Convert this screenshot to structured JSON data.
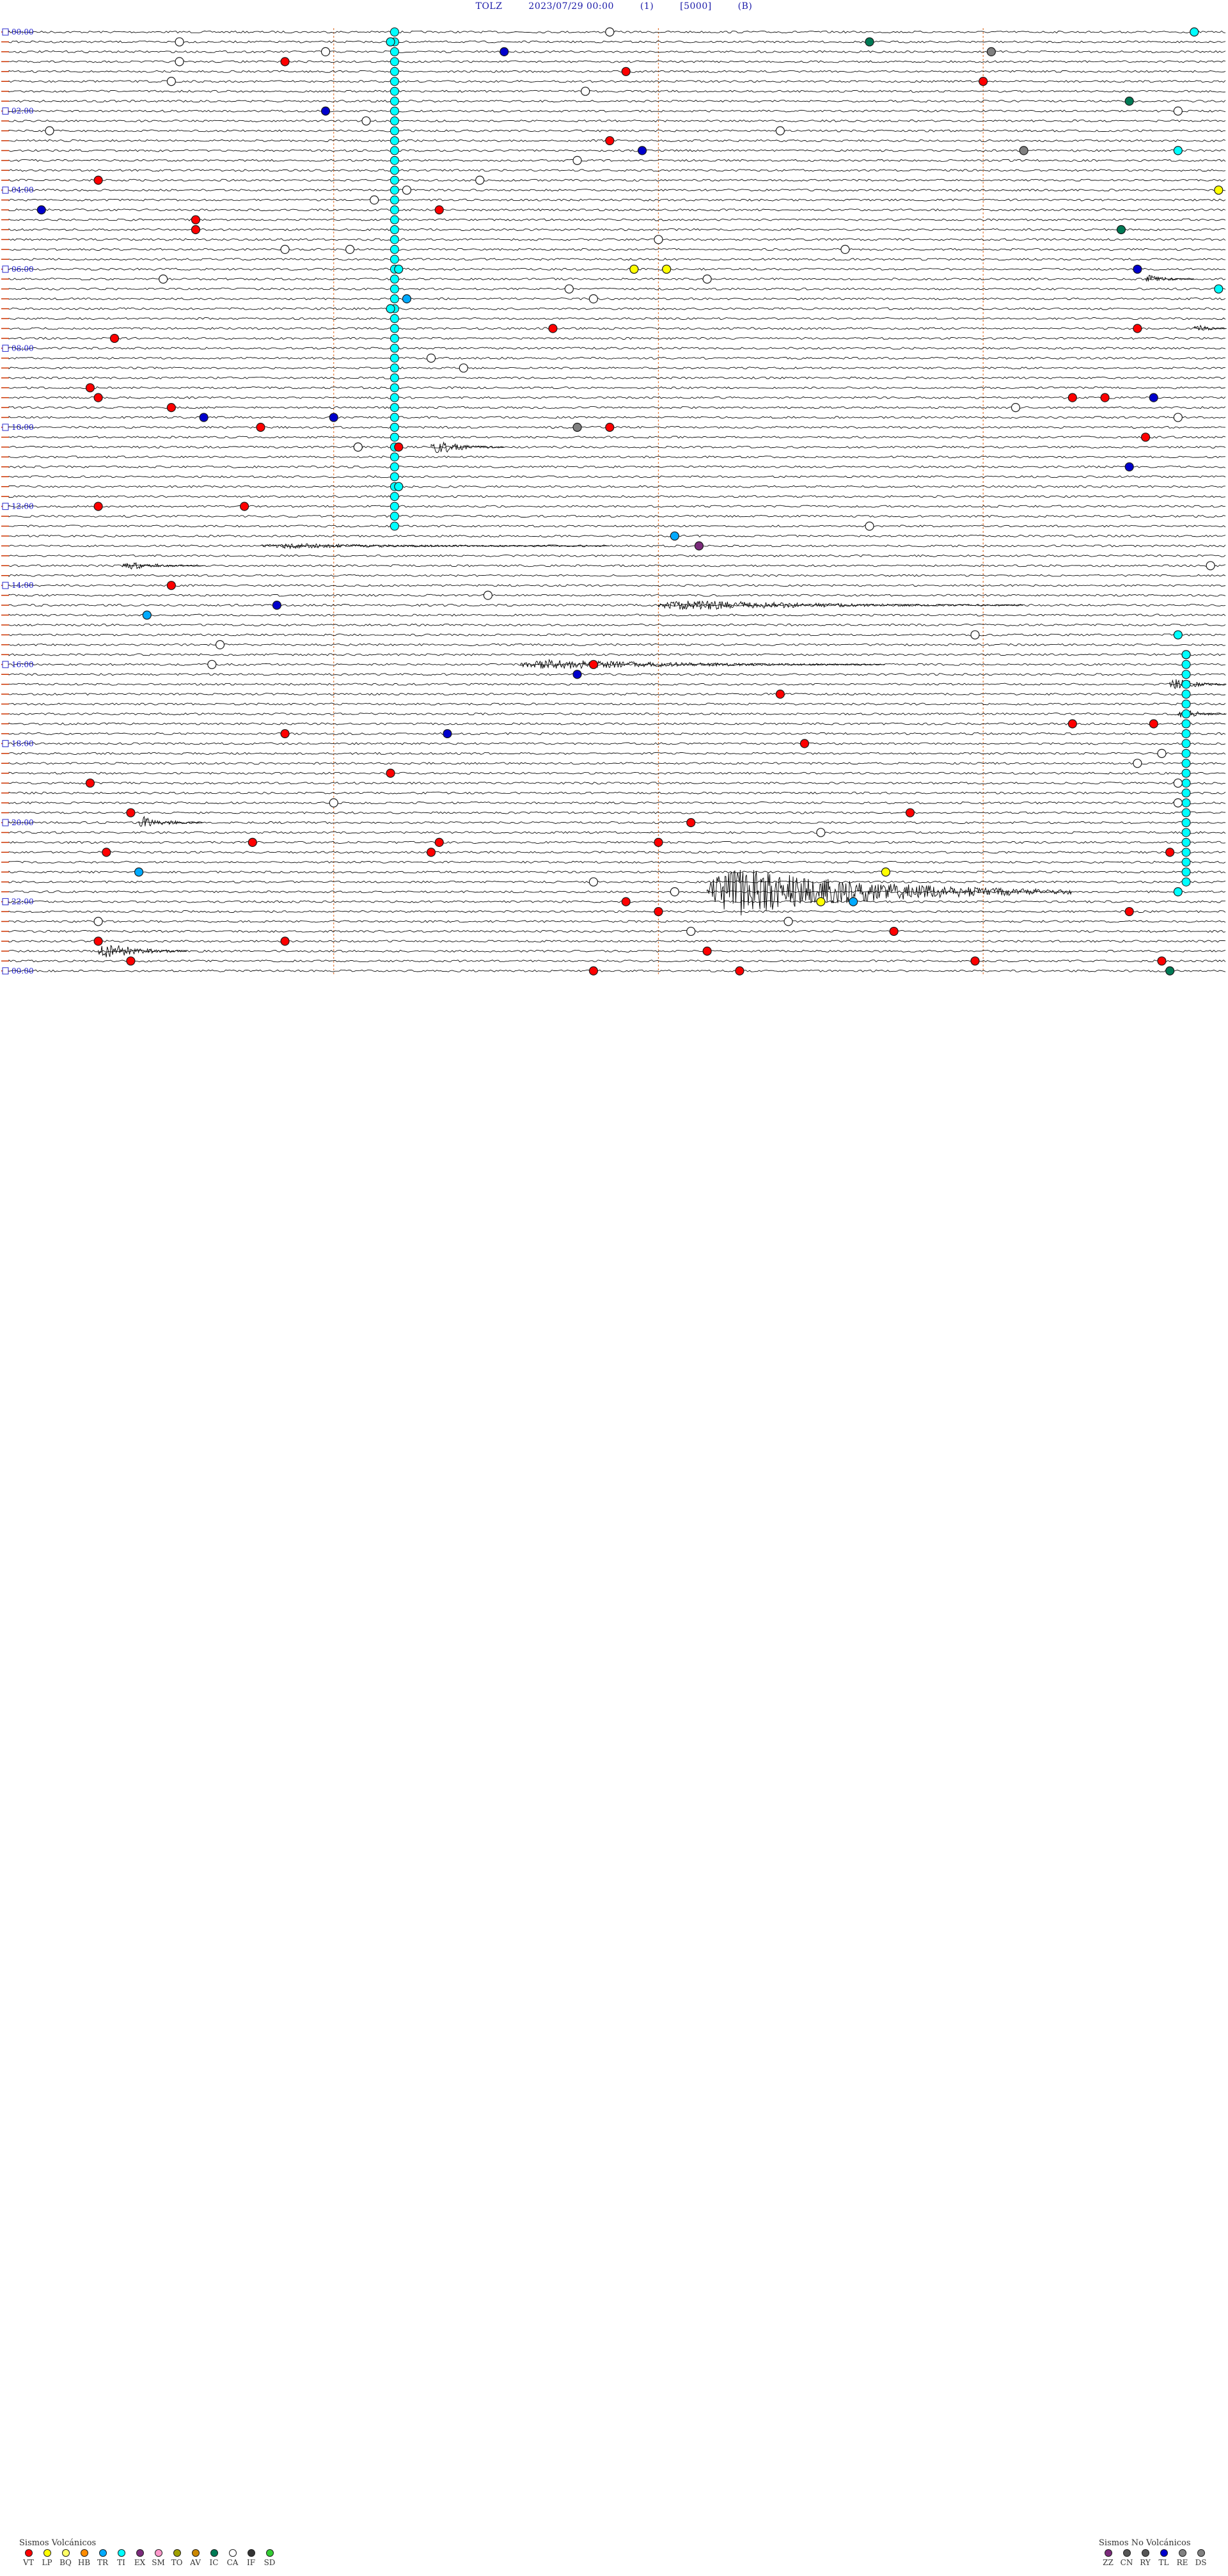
{
  "header": {
    "station": "TOLZ",
    "datetime": "2023/07/29 00:00",
    "channel": "(1)",
    "scale": "[5000]",
    "component": "(B)"
  },
  "chart_data": {
    "type": "helicorder",
    "lines": 96,
    "minutes_per_line": 15,
    "time_labels": [
      "00:00",
      "02:00",
      "04:00",
      "06:00",
      "08:00",
      "10:00",
      "12:00",
      "14:00",
      "16:00",
      "18:00",
      "20:00",
      "22:00",
      "00:00"
    ],
    "colors": {
      "VT": "#ff0000",
      "LP": "#ffff00",
      "BQ": "#ffff66",
      "HB": "#ff8c00",
      "TR": "#00aaff",
      "TI": "#00ffff",
      "EX": "#7b2a7b",
      "SM": "#ff99cc",
      "TO": "#a0a000",
      "AV": "#cc8800",
      "IC": "#007a55",
      "CA": "#ffffff",
      "IF": "#333333",
      "SD": "#33cc33",
      "ZZ": "#7b2a7b",
      "CN": "#555555",
      "RY": "#555555",
      "TL": "#0000cc",
      "RE": "#808080",
      "DS": "#808080"
    },
    "events": [
      {
        "line": 0,
        "minute": 7.4,
        "type": "CA"
      },
      {
        "line": 0,
        "minute": 14.6,
        "type": "TI"
      },
      {
        "line": 1,
        "minute": 2.1,
        "type": "CA"
      },
      {
        "line": 1,
        "minute": 4.7,
        "type": "TI"
      },
      {
        "line": 1,
        "minute": 10.6,
        "type": "IC"
      },
      {
        "line": 2,
        "minute": 3.9,
        "type": "CA"
      },
      {
        "line": 2,
        "minute": 6.1,
        "type": "TL"
      },
      {
        "line": 2,
        "minute": 12.1,
        "type": "RE"
      },
      {
        "line": 3,
        "minute": 3.4,
        "type": "VT"
      },
      {
        "line": 3,
        "minute": 2.1,
        "type": "CA"
      },
      {
        "line": 4,
        "minute": 7.6,
        "type": "VT"
      },
      {
        "line": 4,
        "minute": 17.3,
        "type": "CA"
      },
      {
        "line": 4,
        "minute": 18.5,
        "type": "CA"
      },
      {
        "line": 5,
        "minute": 12.0,
        "type": "VT"
      },
      {
        "line": 5,
        "minute": 2.0,
        "type": "CA"
      },
      {
        "line": 6,
        "minute": 7.1,
        "type": "CA"
      },
      {
        "line": 6,
        "minute": 21.2,
        "type": "VT"
      },
      {
        "line": 7,
        "minute": 13.8,
        "type": "IC"
      },
      {
        "line": 7,
        "minute": 17.9,
        "type": "CA"
      },
      {
        "line": 8,
        "minute": 3.9,
        "type": "TL"
      },
      {
        "line": 8,
        "minute": 14.4,
        "type": "CA"
      },
      {
        "line": 9,
        "minute": 4.4,
        "type": "CA"
      },
      {
        "line": 9,
        "minute": 16.5,
        "type": "CA"
      },
      {
        "line": 10,
        "minute": 0.5,
        "type": "CA"
      },
      {
        "line": 10,
        "minute": 9.5,
        "type": "CA"
      },
      {
        "line": 11,
        "minute": 7.4,
        "type": "VT"
      },
      {
        "line": 11,
        "minute": 18.7,
        "type": "VT"
      },
      {
        "line": 12,
        "minute": 7.8,
        "type": "TL"
      },
      {
        "line": 12,
        "minute": 12.5,
        "type": "RE"
      },
      {
        "line": 12,
        "minute": 14.4,
        "type": "TI"
      },
      {
        "line": 13,
        "minute": 7.0,
        "type": "CA"
      },
      {
        "line": 14,
        "minute": 18.1,
        "type": "CA"
      },
      {
        "line": 15,
        "minute": 1.1,
        "type": "VT"
      },
      {
        "line": 15,
        "minute": 5.8,
        "type": "CA"
      },
      {
        "line": 16,
        "minute": 4.9,
        "type": "CA"
      },
      {
        "line": 16,
        "minute": 14.9,
        "type": "LP"
      },
      {
        "line": 16,
        "minute": 17.3,
        "type": "LP"
      },
      {
        "line": 16,
        "minute": 18.4,
        "type": "LP"
      },
      {
        "line": 16,
        "minute": 20.2,
        "type": "LP"
      },
      {
        "line": 17,
        "minute": 4.5,
        "type": "CA"
      },
      {
        "line": 17,
        "minute": 19.6,
        "type": "IC"
      },
      {
        "line": 18,
        "minute": 0.4,
        "type": "TL"
      },
      {
        "line": 18,
        "minute": 5.3,
        "type": "VT"
      },
      {
        "line": 18,
        "minute": 22.9,
        "type": "CA"
      },
      {
        "line": 19,
        "minute": 2.3,
        "type": "VT"
      },
      {
        "line": 19,
        "minute": 19.2,
        "type": "CA"
      },
      {
        "line": 20,
        "minute": 2.3,
        "type": "VT"
      },
      {
        "line": 20,
        "minute": 13.7,
        "type": "IC"
      },
      {
        "line": 21,
        "minute": 8.0,
        "type": "CA"
      },
      {
        "line": 21,
        "minute": 20.3,
        "type": "CA"
      },
      {
        "line": 22,
        "minute": 3.4,
        "type": "CA"
      },
      {
        "line": 22,
        "minute": 4.2,
        "type": "CA"
      },
      {
        "line": 22,
        "minute": 10.3,
        "type": "CA"
      },
      {
        "line": 22,
        "minute": 20.4,
        "type": "VT"
      },
      {
        "line": 23,
        "minute": 21.3,
        "type": "CA"
      },
      {
        "line": 23,
        "minute": 21.9,
        "type": "CA"
      },
      {
        "line": 24,
        "minute": 4.8,
        "type": "TI"
      },
      {
        "line": 24,
        "minute": 7.7,
        "type": "LP"
      },
      {
        "line": 24,
        "minute": 8.1,
        "type": "LP"
      },
      {
        "line": 24,
        "minute": 13.9,
        "type": "TL"
      },
      {
        "line": 24,
        "minute": 17.8,
        "type": "VT"
      },
      {
        "line": 24,
        "minute": 21.4,
        "type": "CA"
      },
      {
        "line": 25,
        "minute": 1.9,
        "type": "CA"
      },
      {
        "line": 25,
        "minute": 8.6,
        "type": "CA"
      },
      {
        "line": 25,
        "minute": 20.5,
        "type": "CA"
      },
      {
        "line": 25,
        "minute": 22.0,
        "type": "CA"
      },
      {
        "line": 26,
        "minute": 6.9,
        "type": "CA"
      },
      {
        "line": 26,
        "minute": 14.9,
        "type": "TI"
      },
      {
        "line": 27,
        "minute": 4.9,
        "type": "TR"
      },
      {
        "line": 27,
        "minute": 7.2,
        "type": "CA"
      },
      {
        "line": 27,
        "minute": 17.3,
        "type": "TR"
      },
      {
        "line": 28,
        "minute": 4.7,
        "type": "TI"
      },
      {
        "line": 28,
        "minute": 16.5,
        "type": "TR"
      },
      {
        "line": 29,
        "minute": 23.1,
        "type": "CA"
      },
      {
        "line": 30,
        "minute": 6.7,
        "type": "VT"
      },
      {
        "line": 30,
        "minute": 13.9,
        "type": "VT"
      },
      {
        "line": 30,
        "minute": 17.1,
        "type": "IC"
      },
      {
        "line": 31,
        "minute": 1.3,
        "type": "VT"
      },
      {
        "line": 33,
        "minute": 5.2,
        "type": "CA"
      },
      {
        "line": 34,
        "minute": 5.6,
        "type": "CA"
      },
      {
        "line": 35,
        "minute": 20.9,
        "type": "VT"
      },
      {
        "line": 36,
        "minute": 1.0,
        "type": "VT"
      },
      {
        "line": 36,
        "minute": 21.1,
        "type": "CA"
      },
      {
        "line": 37,
        "minute": 1.1,
        "type": "VT"
      },
      {
        "line": 37,
        "minute": 13.1,
        "type": "VT"
      },
      {
        "line": 37,
        "minute": 13.5,
        "type": "VT"
      },
      {
        "line": 37,
        "minute": 14.1,
        "type": "TL"
      },
      {
        "line": 37,
        "minute": 16.4,
        "type": "VT"
      },
      {
        "line": 38,
        "minute": 2.0,
        "type": "VT"
      },
      {
        "line": 38,
        "minute": 12.4,
        "type": "CA"
      },
      {
        "line": 39,
        "minute": 2.4,
        "type": "TL"
      },
      {
        "line": 39,
        "minute": 4.0,
        "type": "TL"
      },
      {
        "line": 39,
        "minute": 14.4,
        "type": "CA"
      },
      {
        "line": 40,
        "minute": 7.0,
        "type": "RE"
      },
      {
        "line": 40,
        "minute": 3.1,
        "type": "VT"
      },
      {
        "line": 40,
        "minute": 7.4,
        "type": "VT"
      },
      {
        "line": 41,
        "minute": 14.0,
        "type": "VT"
      },
      {
        "line": 41,
        "minute": 20.1,
        "type": "CA"
      },
      {
        "line": 42,
        "minute": 4.3,
        "type": "CA"
      },
      {
        "line": 42,
        "minute": 4.8,
        "type": "VT"
      },
      {
        "line": 42,
        "minute": 4.3,
        "type": "CA"
      },
      {
        "line": 43,
        "minute": 17.3,
        "type": "CA"
      },
      {
        "line": 43,
        "minute": 19.6,
        "type": "CA"
      },
      {
        "line": 44,
        "minute": 13.8,
        "type": "TL"
      },
      {
        "line": 45,
        "minute": 15.5,
        "type": "VT"
      },
      {
        "line": 45,
        "minute": 21.8,
        "type": "VT"
      },
      {
        "line": 46,
        "minute": 4.8,
        "type": "TI"
      },
      {
        "line": 46,
        "minute": 16.9,
        "type": "VT"
      },
      {
        "line": 46,
        "minute": 18.4,
        "type": "CA"
      },
      {
        "line": 46,
        "minute": 20.0,
        "type": "LP"
      },
      {
        "line": 48,
        "minute": 1.1,
        "type": "VT"
      },
      {
        "line": 48,
        "minute": 2.9,
        "type": "VT"
      },
      {
        "line": 50,
        "minute": 10.6,
        "type": "CA"
      },
      {
        "line": 50,
        "minute": 19.9,
        "type": "VT"
      },
      {
        "line": 51,
        "minute": 8.2,
        "type": "TR"
      },
      {
        "line": 52,
        "minute": 8.5,
        "type": "EX"
      },
      {
        "line": 54,
        "minute": 14.8,
        "type": "CA"
      },
      {
        "line": 56,
        "minute": 2.0,
        "type": "VT"
      },
      {
        "line": 56,
        "minute": 19.8,
        "type": "CA"
      },
      {
        "line": 57,
        "minute": 5.9,
        "type": "CA"
      },
      {
        "line": 57,
        "minute": 20.4,
        "type": "CA"
      },
      {
        "line": 58,
        "minute": 3.3,
        "type": "TL"
      },
      {
        "line": 58,
        "minute": 20.0,
        "type": "VT"
      },
      {
        "line": 59,
        "minute": 1.7,
        "type": "TR"
      },
      {
        "line": 60,
        "minute": 19.4,
        "type": "VT"
      },
      {
        "line": 61,
        "minute": 11.9,
        "type": "CA"
      },
      {
        "line": 61,
        "minute": 14.4,
        "type": "TI"
      },
      {
        "line": 61,
        "minute": 16.8,
        "type": "VT"
      },
      {
        "line": 62,
        "minute": 2.6,
        "type": "CA"
      },
      {
        "line": 62,
        "minute": 21.6,
        "type": "RE"
      },
      {
        "line": 63,
        "minute": 14.5,
        "type": "TI"
      },
      {
        "line": 63,
        "minute": 16.8,
        "type": "VT"
      },
      {
        "line": 64,
        "minute": 2.5,
        "type": "CA"
      },
      {
        "line": 64,
        "minute": 7.2,
        "type": "VT"
      },
      {
        "line": 65,
        "minute": 7.0,
        "type": "TL"
      },
      {
        "line": 67,
        "minute": 9.5,
        "type": "VT"
      },
      {
        "line": 69,
        "minute": 18.3,
        "type": "VT"
      },
      {
        "line": 70,
        "minute": 13.1,
        "type": "VT"
      },
      {
        "line": 70,
        "minute": 14.1,
        "type": "VT"
      },
      {
        "line": 71,
        "minute": 3.4,
        "type": "VT"
      },
      {
        "line": 71,
        "minute": 5.4,
        "type": "TL"
      },
      {
        "line": 72,
        "minute": 9.8,
        "type": "VT"
      },
      {
        "line": 73,
        "minute": 14.2,
        "type": "CA"
      },
      {
        "line": 73,
        "minute": 20.0,
        "type": "CA"
      },
      {
        "line": 73,
        "minute": 21.0,
        "type": "VT"
      },
      {
        "line": 74,
        "minute": 13.9,
        "type": "CA"
      },
      {
        "line": 75,
        "minute": 4.7,
        "type": "VT"
      },
      {
        "line": 75,
        "minute": 19.1,
        "type": "VT"
      },
      {
        "line": 76,
        "minute": 1.0,
        "type": "VT"
      },
      {
        "line": 76,
        "minute": 14.4,
        "type": "CA"
      },
      {
        "line": 76,
        "minute": 18.2,
        "type": "CA"
      },
      {
        "line": 77,
        "minute": 21.0,
        "type": "CA"
      },
      {
        "line": 77,
        "minute": 18.8,
        "type": "TR"
      },
      {
        "line": 78,
        "minute": 4.0,
        "type": "CA"
      },
      {
        "line": 78,
        "minute": 14.4,
        "type": "CA"
      },
      {
        "line": 78,
        "minute": 18.9,
        "type": "LP"
      },
      {
        "line": 79,
        "minute": 1.5,
        "type": "VT"
      },
      {
        "line": 79,
        "minute": 11.1,
        "type": "VT"
      },
      {
        "line": 80,
        "minute": 8.4,
        "type": "VT"
      },
      {
        "line": 81,
        "minute": 10.0,
        "type": "CA"
      },
      {
        "line": 81,
        "minute": 18.8,
        "type": "CA"
      },
      {
        "line": 82,
        "minute": 3.0,
        "type": "VT"
      },
      {
        "line": 82,
        "minute": 5.3,
        "type": "VT"
      },
      {
        "line": 82,
        "minute": 8.0,
        "type": "VT"
      },
      {
        "line": 82,
        "minute": 16.1,
        "type": "VT"
      },
      {
        "line": 82,
        "minute": 20.9,
        "type": "VT"
      },
      {
        "line": 82,
        "minute": 22.8,
        "type": "VT"
      },
      {
        "line": 83,
        "minute": 1.2,
        "type": "VT"
      },
      {
        "line": 83,
        "minute": 5.2,
        "type": "VT"
      },
      {
        "line": 83,
        "minute": 14.3,
        "type": "VT"
      },
      {
        "line": 83,
        "minute": 17.9,
        "type": "VT"
      },
      {
        "line": 84,
        "minute": 17.0,
        "type": "TL"
      },
      {
        "line": 84,
        "minute": 21.0,
        "type": "LP"
      },
      {
        "line": 85,
        "minute": 1.6,
        "type": "TR"
      },
      {
        "line": 85,
        "minute": 10.8,
        "type": "LP"
      },
      {
        "line": 86,
        "minute": 7.2,
        "type": "CA"
      },
      {
        "line": 87,
        "minute": 8.2,
        "type": "CA"
      },
      {
        "line": 87,
        "minute": 14.4,
        "type": "TI"
      },
      {
        "line": 88,
        "minute": 7.6,
        "type": "VT"
      },
      {
        "line": 88,
        "minute": 10.0,
        "type": "LP"
      },
      {
        "line": 88,
        "minute": 10.4,
        "type": "TR"
      },
      {
        "line": 89,
        "minute": 8.0,
        "type": "VT"
      },
      {
        "line": 89,
        "minute": 13.8,
        "type": "VT"
      },
      {
        "line": 90,
        "minute": 1.1,
        "type": "CA"
      },
      {
        "line": 90,
        "minute": 9.6,
        "type": "CA"
      },
      {
        "line": 91,
        "minute": 8.4,
        "type": "CA"
      },
      {
        "line": 91,
        "minute": 10.9,
        "type": "VT"
      },
      {
        "line": 92,
        "minute": 1.1,
        "type": "VT"
      },
      {
        "line": 92,
        "minute": 3.4,
        "type": "VT"
      },
      {
        "line": 93,
        "minute": 8.6,
        "type": "VT"
      },
      {
        "line": 93,
        "minute": 15.6,
        "type": "VT"
      },
      {
        "line": 94,
        "minute": 1.5,
        "type": "VT"
      },
      {
        "line": 94,
        "minute": 11.9,
        "type": "VT"
      },
      {
        "line": 94,
        "minute": 14.2,
        "type": "VT"
      },
      {
        "line": 95,
        "minute": 7.2,
        "type": "VT"
      },
      {
        "line": 95,
        "minute": 9.0,
        "type": "VT"
      },
      {
        "line": 95,
        "minute": 14.3,
        "type": "IC"
      }
    ],
    "bursts": [
      {
        "line": 4,
        "minute": 22.5,
        "width": 1.2,
        "amp": 14
      },
      {
        "line": 15,
        "minute": 21.4,
        "width": 0.8,
        "amp": 10
      },
      {
        "line": 25,
        "minute": 14.0,
        "width": 0.6,
        "amp": 8
      },
      {
        "line": 30,
        "minute": 14.6,
        "width": 1.0,
        "amp": 8
      },
      {
        "line": 42,
        "minute": 5.2,
        "width": 0.9,
        "amp": 14
      },
      {
        "line": 46,
        "minute": 18.2,
        "width": 0.9,
        "amp": 10
      },
      {
        "line": 47,
        "minute": 17.4,
        "width": 1.0,
        "amp": 12
      },
      {
        "line": 52,
        "minute": 3.1,
        "width": 4.3,
        "amp": 5
      },
      {
        "line": 54,
        "minute": 1.4,
        "width": 1.0,
        "amp": 8
      },
      {
        "line": 58,
        "minute": 8.0,
        "width": 4.5,
        "amp": 10
      },
      {
        "line": 64,
        "minute": 6.3,
        "width": 4.5,
        "amp": 10
      },
      {
        "line": 66,
        "minute": 14.3,
        "width": 3.0,
        "amp": 12
      },
      {
        "line": 69,
        "minute": 14.4,
        "width": 1.4,
        "amp": 10
      },
      {
        "line": 80,
        "minute": 1.6,
        "width": 0.8,
        "amp": 12
      },
      {
        "line": 84,
        "minute": 20.8,
        "width": 3.8,
        "amp": 55
      },
      {
        "line": 87,
        "minute": 8.6,
        "width": 4.5,
        "amp": 48
      },
      {
        "line": 93,
        "minute": 1.1,
        "width": 1.1,
        "amp": 16
      }
    ],
    "tremor_columns": [
      {
        "minute": 4.75,
        "from_line": 0,
        "to_line": 51
      },
      {
        "minute": 19.4,
        "from_line": 51,
        "to_line": 64
      },
      {
        "minute": 14.5,
        "from_line": 64,
        "to_line": 87
      },
      {
        "minute": 19.4,
        "from_line": 87,
        "to_line": 96
      }
    ],
    "legend_volcanic": {
      "title": "Sismos Volcánicos",
      "items": [
        "VT",
        "LP",
        "BQ",
        "HB",
        "TR",
        "TI",
        "EX",
        "SM",
        "TO",
        "AV",
        "IC",
        "CA",
        "IF",
        "SD"
      ]
    },
    "legend_nonvolcanic": {
      "title": "Sismos No Volcánicos",
      "items": [
        "ZZ",
        "CN",
        "RY",
        "TL",
        "RE",
        "DS"
      ]
    }
  }
}
